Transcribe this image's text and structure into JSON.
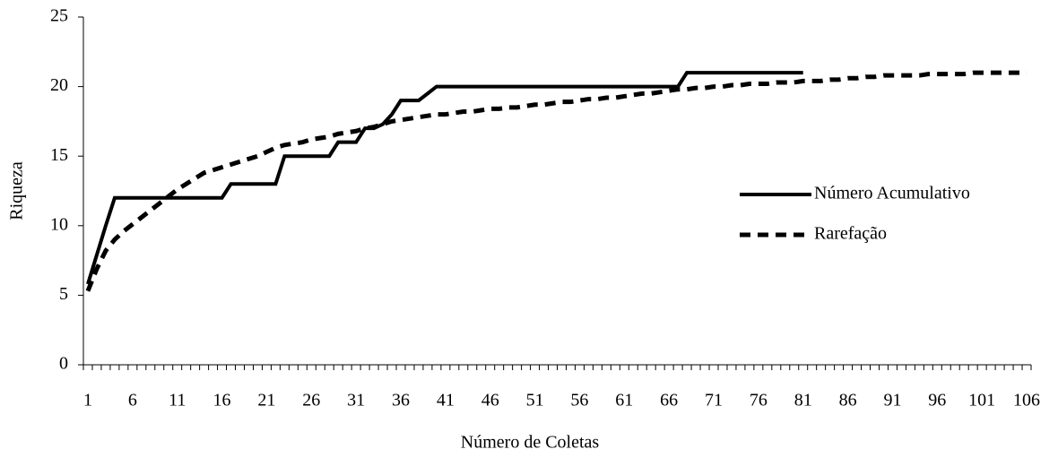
{
  "chart_data": {
    "type": "line",
    "x_label": "Número de Coletas",
    "y_label": "Riqueza",
    "categories": [
      "1",
      null,
      null,
      null,
      null,
      "6",
      null,
      null,
      null,
      null,
      "11",
      null,
      null,
      null,
      null,
      "16",
      null,
      null,
      null,
      null,
      "21",
      null,
      null,
      null,
      null,
      "26",
      null,
      null,
      null,
      null,
      "31",
      null,
      null,
      null,
      null,
      "36",
      null,
      null,
      null,
      null,
      "41",
      null,
      null,
      null,
      null,
      "46",
      null,
      null,
      null,
      null,
      "51",
      null,
      null,
      null,
      null,
      "56",
      null,
      null,
      null,
      null,
      "61",
      null,
      null,
      null,
      null,
      "66",
      null,
      null,
      null,
      null,
      "71",
      null,
      null,
      null,
      null,
      "76",
      null,
      null,
      null,
      null,
      "81",
      null,
      null,
      null,
      null,
      "86",
      null,
      null,
      null,
      null,
      "91",
      null,
      null,
      null,
      null,
      "96",
      null,
      null,
      null,
      null,
      "101",
      null,
      null,
      null,
      null,
      "106"
    ],
    "series": [
      {
        "name": "Número Acumulativo",
        "color": "#000000",
        "dash": false,
        "values": [
          5.8,
          7.9,
          10,
          12,
          12,
          12,
          12,
          12,
          12,
          12,
          12,
          12,
          12,
          12,
          12,
          12,
          13,
          13,
          13,
          13,
          13,
          13,
          15,
          15,
          15,
          15,
          15,
          15,
          16,
          16,
          16,
          17,
          17,
          17.3,
          18,
          19,
          19,
          19,
          19.5,
          20,
          20,
          20,
          20,
          20,
          20,
          20,
          20,
          20,
          20,
          20,
          20,
          20,
          20,
          20,
          20,
          20,
          20,
          20,
          20,
          20,
          20,
          20,
          20,
          20,
          20,
          20,
          20,
          21,
          21,
          21,
          21,
          21,
          21,
          21,
          21,
          21,
          21,
          21,
          21,
          21,
          21,
          null,
          null,
          null,
          null,
          null,
          null,
          null,
          null,
          null,
          null,
          null,
          null,
          null,
          null,
          null,
          null,
          null,
          null,
          null,
          null,
          null,
          null,
          null,
          null,
          null
        ]
      },
      {
        "name": "Rarefação",
        "color": "#000000",
        "dash": true,
        "values": [
          5.3,
          6.9,
          8.2,
          9.0,
          9.6,
          10.1,
          10.6,
          11.1,
          11.6,
          12.1,
          12.6,
          13.0,
          13.4,
          13.8,
          14.0,
          14.2,
          14.4,
          14.6,
          14.8,
          15.0,
          15.3,
          15.6,
          15.8,
          15.9,
          16.0,
          16.2,
          16.3,
          16.4,
          16.6,
          16.7,
          16.8,
          17.0,
          17.1,
          17.3,
          17.5,
          17.6,
          17.7,
          17.8,
          17.9,
          18.0,
          18.0,
          18.1,
          18.2,
          18.2,
          18.3,
          18.4,
          18.4,
          18.5,
          18.5,
          18.6,
          18.7,
          18.7,
          18.8,
          18.9,
          18.9,
          19.0,
          19.1,
          19.1,
          19.2,
          19.2,
          19.3,
          19.4,
          19.5,
          19.5,
          19.6,
          19.7,
          19.8,
          19.8,
          19.9,
          19.9,
          20.0,
          20.0,
          20.1,
          20.1,
          20.2,
          20.2,
          20.2,
          20.3,
          20.3,
          20.3,
          20.4,
          20.4,
          20.4,
          20.5,
          20.5,
          20.6,
          20.6,
          20.7,
          20.7,
          20.8,
          20.8,
          20.8,
          20.8,
          20.8,
          20.9,
          20.9,
          20.9,
          20.9,
          20.9,
          21.0,
          21.0,
          21.0,
          21.0,
          21.0,
          21.0,
          21.0
        ]
      }
    ],
    "ylim": [
      0,
      25
    ],
    "yticks": [
      0,
      5,
      10,
      15,
      20,
      25
    ],
    "grid": false,
    "legend": "right"
  }
}
